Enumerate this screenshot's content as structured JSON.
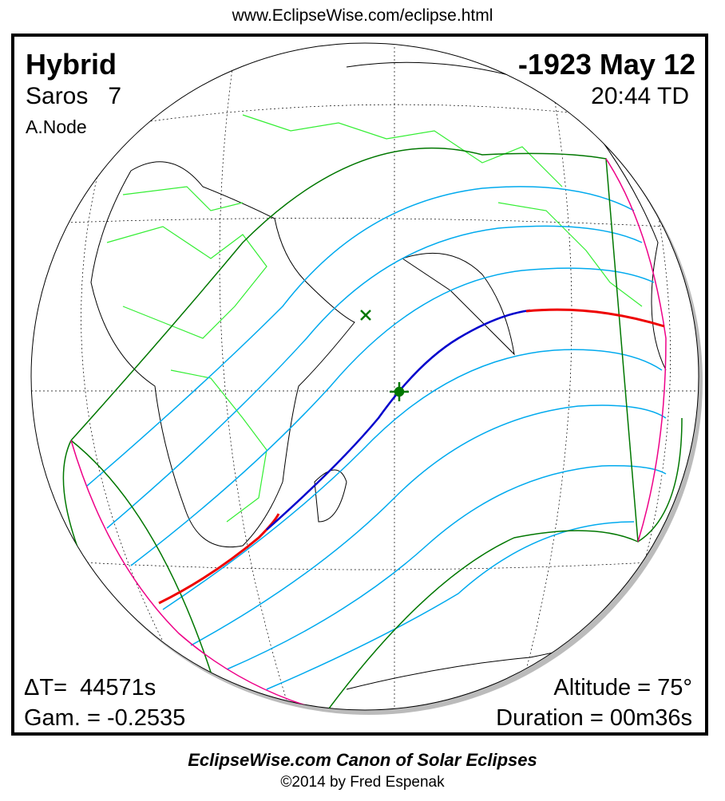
{
  "header_url": "www.EclipseWise.com/eclipse.html",
  "eclipse": {
    "type": "Hybrid",
    "date": "-1923 May 12",
    "saros_label": "Saros",
    "saros_number": "7",
    "time": "20:44 TD",
    "node": "A.Node",
    "delta_t": "ΔT=  44571s",
    "gamma": "Gam. = -0.2535",
    "altitude": "Altitude = 75°",
    "duration": "Duration = 00m36s"
  },
  "footer": {
    "title": "EclipseWise.com Canon of Solar Eclipses",
    "copyright": "©2014 by Fred Espenak"
  },
  "colors": {
    "land_borders": "#33ee33",
    "penumbral_limits": "#007700",
    "magnitude_lines": "#00aaee",
    "central_total": "#0000cc",
    "central_annular": "#ee0000",
    "rise_set": "#ee0088",
    "greatest_eclipse_marker": "#007700"
  }
}
